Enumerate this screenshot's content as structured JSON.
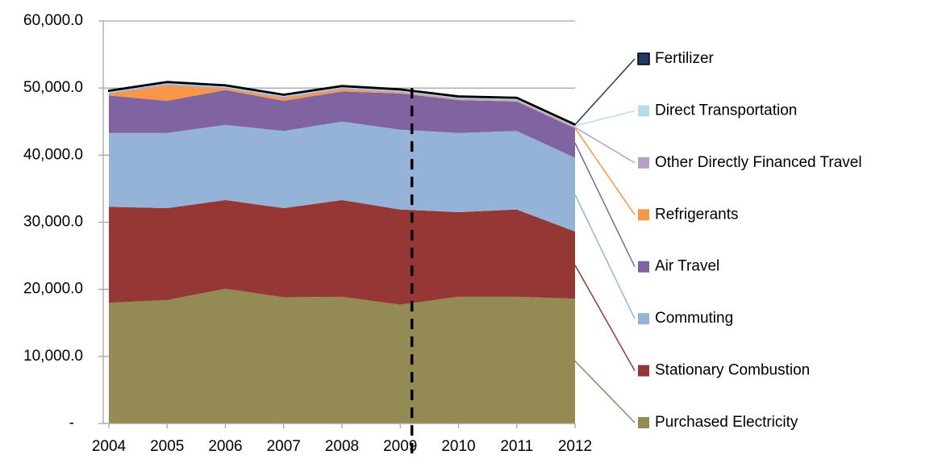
{
  "chart_data": {
    "type": "stacked_area",
    "x": [
      2004,
      2005,
      2006,
      2007,
      2008,
      2009,
      2010,
      2011,
      2012
    ],
    "xlim": [
      2004,
      2012
    ],
    "xticks": [
      2004,
      2005,
      2006,
      2007,
      2008,
      2009,
      2010,
      2011,
      2012
    ],
    "ylim": [
      0,
      60000
    ],
    "yticks": [
      {
        "value": 0,
        "label": "-"
      },
      {
        "value": 10000,
        "label": "10,000.0"
      },
      {
        "value": 20000,
        "label": "20,000.0"
      },
      {
        "value": 30000,
        "label": "30,000.0"
      },
      {
        "value": 40000,
        "label": "40,000.0"
      },
      {
        "value": 50000,
        "label": "50,000.0"
      },
      {
        "value": 60000,
        "label": "60,000.0"
      }
    ],
    "grid": true,
    "legend": "right",
    "reference_line": {
      "x": 2009.2,
      "color": "#000000",
      "style": "dashed"
    },
    "series": [
      {
        "name": "Purchased Electricity",
        "color": "#948a54",
        "values": [
          18000,
          18400,
          20100,
          18800,
          18900,
          17700,
          18900,
          18900,
          18600
        ]
      },
      {
        "name": "Stationary Combustion",
        "color": "#953735",
        "values": [
          14300,
          13700,
          13200,
          13300,
          14400,
          14200,
          12600,
          13000,
          10000
        ]
      },
      {
        "name": "Commuting",
        "color": "#95b3d7",
        "values": [
          11000,
          11200,
          11200,
          11500,
          11700,
          11900,
          11800,
          11700,
          11000
        ]
      },
      {
        "name": "Air Travel",
        "color": "#8064a2",
        "values": [
          5600,
          4800,
          5200,
          4500,
          4500,
          5400,
          4900,
          4400,
          4400
        ]
      },
      {
        "name": "Refrigerants",
        "color": "#f79646",
        "values": [
          200,
          2300,
          200,
          400,
          300,
          100,
          50,
          50,
          50
        ]
      },
      {
        "name": "Other Directly Financed Travel",
        "color": "#b3a2c7",
        "values": [
          200,
          200,
          200,
          200,
          200,
          200,
          200,
          200,
          200
        ]
      },
      {
        "name": "Direct Transportation",
        "color": "#b7dee8",
        "values": [
          250,
          250,
          250,
          250,
          250,
          250,
          250,
          250,
          250
        ]
      },
      {
        "name": "Fertilizer",
        "color": "#1f3864",
        "values": [
          100,
          100,
          100,
          100,
          100,
          100,
          100,
          100,
          100
        ]
      }
    ]
  }
}
